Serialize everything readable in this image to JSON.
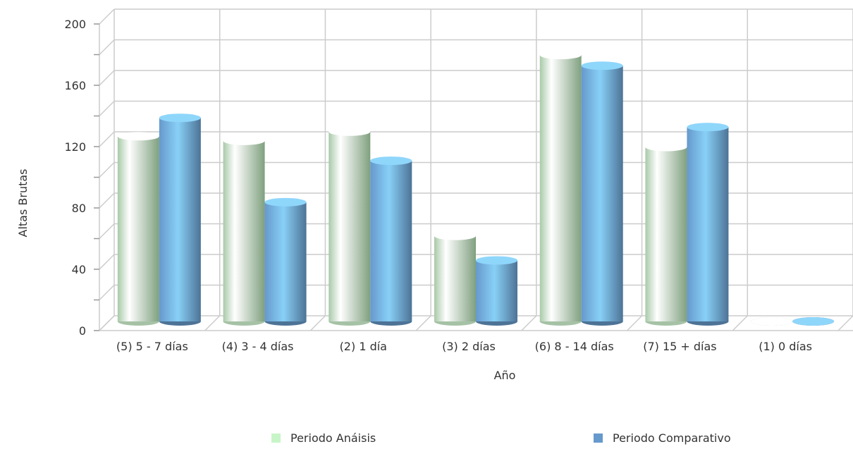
{
  "chart_data": {
    "type": "bar",
    "title": "",
    "xlabel": "Año",
    "ylabel": "Altas Brutas",
    "ylim": [
      0,
      200
    ],
    "yticks": [
      0,
      40,
      80,
      120,
      160,
      200
    ],
    "grid": true,
    "legend_position": "bottom",
    "categories": [
      "(5)   5 - 7 días",
      "(4)   3 - 4 días",
      "(2)   1 día",
      "(3)   2 días",
      "(6)   8 - 14 días",
      "(7)   15 + días",
      "(1)   0 días"
    ],
    "series": [
      {
        "name": "Periodo Anáisis",
        "color": "#c8f5c8",
        "values": [
          124,
          121,
          127,
          59,
          177,
          117,
          2
        ]
      },
      {
        "name": "Periodo Comparativo",
        "color": "#6699cc",
        "values": [
          136,
          81,
          108,
          43,
          170,
          130,
          3
        ]
      }
    ]
  }
}
